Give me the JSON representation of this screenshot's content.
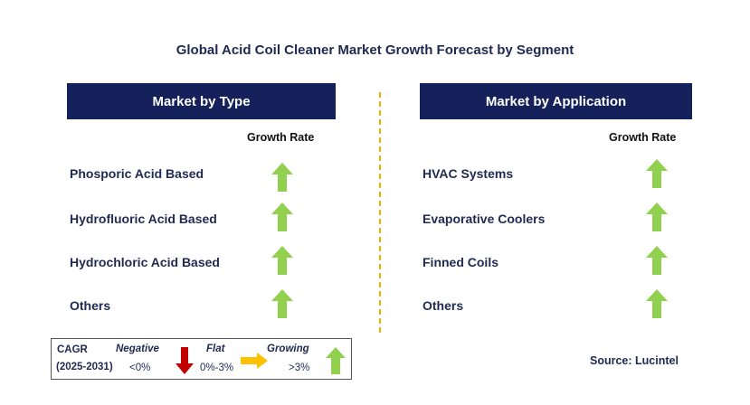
{
  "title": "Global Acid Coil Cleaner Market Growth Forecast by Segment",
  "left_panel": {
    "header": "Market by Type",
    "column_label": "Growth Rate",
    "rows": [
      {
        "label": "Phosporic Acid Based",
        "trend": "growing"
      },
      {
        "label": "Hydrofluoric Acid Based",
        "trend": "growing"
      },
      {
        "label": "Hydrochloric Acid Based",
        "trend": "growing"
      },
      {
        "label": "Others",
        "trend": "growing"
      }
    ]
  },
  "right_panel": {
    "header": "Market by Application",
    "column_label": "Growth Rate",
    "rows": [
      {
        "label": "HVAC Systems",
        "trend": "growing"
      },
      {
        "label": "Evaporative Coolers",
        "trend": "growing"
      },
      {
        "label": "Finned Coils",
        "trend": "growing"
      },
      {
        "label": "Others",
        "trend": "growing"
      }
    ]
  },
  "legend": {
    "cagr_label": "CAGR",
    "period": "(2025-2031)",
    "negative": {
      "label": "Negative",
      "range": "<0%",
      "icon": "arrow-down-icon",
      "color": "#c00000"
    },
    "flat": {
      "label": "Flat",
      "range": "0%-3%",
      "icon": "arrow-right-icon",
      "color": "#ffc000"
    },
    "growing": {
      "label": "Growing",
      "range": ">3%",
      "icon": "arrow-up-icon",
      "color": "#92d050"
    }
  },
  "source": "Source: Lucintel",
  "colors": {
    "header_bg": "#14215a",
    "text": "#1f2a52",
    "divider": "#f0b000",
    "growing_arrow": "#92d050"
  }
}
